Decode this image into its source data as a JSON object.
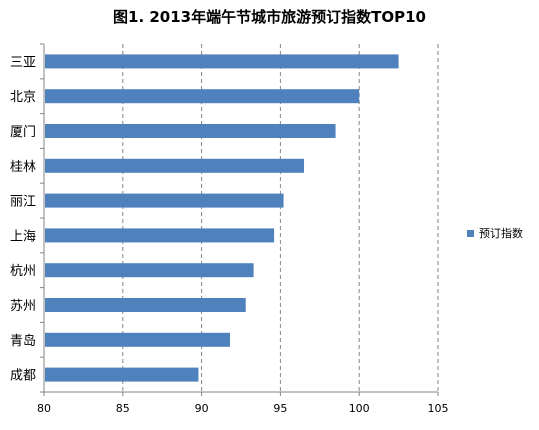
{
  "chart_data": {
    "type": "bar",
    "orientation": "horizontal",
    "title": "图1. 2013年端午节城市旅游预订指数TOP10",
    "xlabel": "",
    "ylabel": "",
    "categories": [
      "三亚",
      "北京",
      "厦门",
      "桂林",
      "丽江",
      "上海",
      "杭州",
      "苏州",
      "青岛",
      "成都"
    ],
    "series": [
      {
        "name": "预订指数",
        "values": [
          102.5,
          100.0,
          98.5,
          96.5,
          95.2,
          94.6,
          93.3,
          92.8,
          91.8,
          89.8
        ]
      }
    ],
    "xlim": [
      80,
      105
    ],
    "xticks": [
      "80",
      "85",
      "90",
      "95",
      "100",
      "105"
    ],
    "grid": "vertical-dashed",
    "legend_position": "right",
    "colors": {
      "bar": "#4F81BD",
      "grid": "#868686",
      "axis": "#868686"
    }
  }
}
